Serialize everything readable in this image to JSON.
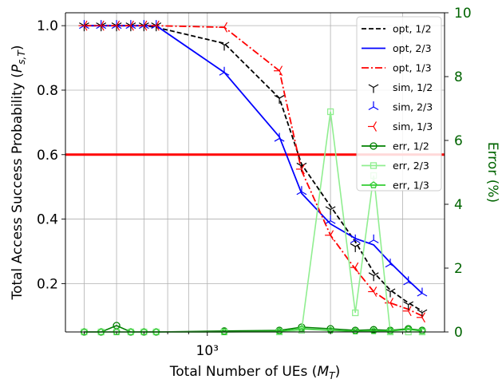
{
  "chart_data": {
    "type": "line",
    "xlabel": "Total Number of UEs ($M_T$)",
    "ylabel_left": "Total Access Success Probability ($P_{s,T}$)",
    "ylabel_right": "Error (%)",
    "x_scale": "log",
    "xlim": [
      450,
      3800
    ],
    "x_tick_label": "10³",
    "ylim_left": [
      0.05,
      1.04
    ],
    "yticks_left": [
      0.2,
      0.4,
      0.6,
      0.8,
      1.0
    ],
    "ylim_right": [
      0,
      10
    ],
    "yticks_right": [
      0,
      2,
      4,
      6,
      8,
      10
    ],
    "grid": true,
    "legend_position": "top-right",
    "threshold_line": {
      "y": 0.6,
      "color": "#ff0000"
    },
    "colors": {
      "opt_1_2": "#000000",
      "opt_2_3": "#0000ff",
      "opt_1_3": "#ff0000",
      "err_1_2": "#008000",
      "err_2_3": "#90ee90",
      "err_1_3": "#32cd32",
      "right_axis": "#006400"
    },
    "x": [
      500,
      550,
      600,
      650,
      700,
      750,
      1100,
      1500,
      1700,
      2000,
      2300,
      2550,
      2800,
      3100,
      3350
    ],
    "series": [
      {
        "name": "opt, 1/2",
        "axis": "left",
        "style": "dashed",
        "values": [
          1.0,
          1.0,
          1.0,
          1.0,
          1.0,
          0.995,
          0.945,
          0.775,
          0.57,
          0.44,
          0.33,
          0.235,
          0.18,
          0.14,
          0.115
        ]
      },
      {
        "name": "opt, 2/3",
        "axis": "left",
        "style": "solid",
        "values": [
          1.0,
          1.0,
          1.0,
          1.0,
          1.0,
          1.0,
          0.855,
          0.655,
          0.48,
          0.385,
          0.34,
          0.32,
          0.265,
          0.21,
          0.17
        ]
      },
      {
        "name": "opt, 1/3",
        "axis": "left",
        "style": "dashdot",
        "values": [
          1.0,
          1.0,
          1.0,
          1.0,
          1.0,
          1.0,
          0.995,
          0.86,
          0.55,
          0.35,
          0.245,
          0.175,
          0.14,
          0.12,
          0.1
        ]
      },
      {
        "name": "sim, 1/2",
        "axis": "left",
        "marker": "tri_down",
        "values": [
          1.0,
          1.0,
          1.0,
          1.0,
          1.0,
          1.0,
          0.94,
          0.775,
          0.565,
          0.43,
          0.315,
          0.225,
          0.175,
          0.135,
          0.11
        ]
      },
      {
        "name": "sim, 2/3",
        "axis": "left",
        "marker": "tri_up",
        "values": [
          1.0,
          1.0,
          1.0,
          1.0,
          1.0,
          1.0,
          0.855,
          0.65,
          0.485,
          0.395,
          0.335,
          0.335,
          0.26,
          0.205,
          0.17
        ]
      },
      {
        "name": "sim, 1/3",
        "axis": "left",
        "marker": "tri_left",
        "values": [
          1.0,
          1.0,
          1.0,
          1.0,
          1.0,
          1.0,
          0.995,
          0.86,
          0.555,
          0.35,
          0.25,
          0.175,
          0.14,
          0.115,
          0.095
        ]
      },
      {
        "name": "err, 1/2",
        "axis": "right",
        "marker": "circle",
        "values": [
          0.0,
          0.0,
          0.2,
          0.0,
          0.0,
          0.0,
          0.03,
          0.05,
          0.15,
          0.1,
          0.05,
          0.07,
          0.05,
          0.1,
          0.05
        ]
      },
      {
        "name": "err, 2/3",
        "axis": "right",
        "marker": "square",
        "values": [
          0.0,
          0.0,
          0.0,
          0.0,
          0.0,
          0.0,
          0.0,
          0.0,
          0.05,
          6.9,
          0.6,
          4.9,
          0.0,
          0.0,
          0.0
        ]
      },
      {
        "name": "err, 1/3",
        "axis": "right",
        "marker": "pentagon",
        "values": [
          0.0,
          0.0,
          0.0,
          0.0,
          0.0,
          0.0,
          0.0,
          0.02,
          0.1,
          0.05,
          0.02,
          0.03,
          0.03,
          0.08,
          0.03
        ]
      }
    ]
  }
}
